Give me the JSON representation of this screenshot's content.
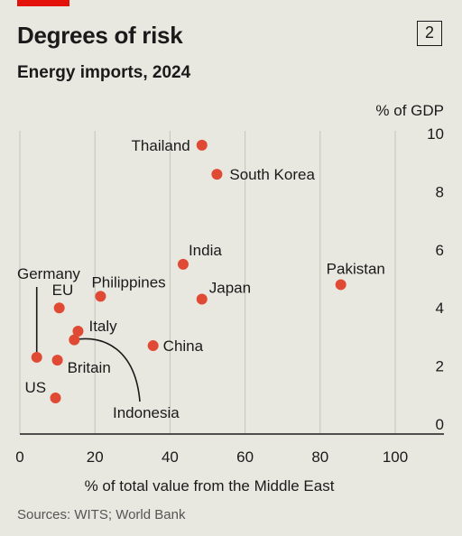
{
  "header": {
    "title": "Degrees of risk",
    "badge": "2",
    "subtitle": "Energy imports, 2024",
    "accent_color": "#e3120b"
  },
  "footer": {
    "source": "Sources: WITS; World Bank"
  },
  "chart_data": {
    "type": "scatter",
    "xlabel": "% of total value from the Middle East",
    "ylabel": "% of GDP",
    "xlim": [
      0,
      110
    ],
    "ylim": [
      0,
      10
    ],
    "xticks": [
      0,
      20,
      40,
      60,
      80,
      100
    ],
    "yticks": [
      0,
      2,
      4,
      6,
      8,
      10
    ],
    "grid": "vertical",
    "point_color": "#e04a35",
    "points": [
      {
        "label": "Thailand",
        "x": 48.5,
        "y": 9.6
      },
      {
        "label": "South Korea",
        "x": 52.5,
        "y": 8.6
      },
      {
        "label": "India",
        "x": 43.5,
        "y": 5.5
      },
      {
        "label": "Pakistan",
        "x": 85.5,
        "y": 4.8
      },
      {
        "label": "Japan",
        "x": 48.5,
        "y": 4.3
      },
      {
        "label": "Philippines",
        "x": 21.5,
        "y": 4.4
      },
      {
        "label": "EU",
        "x": 10.5,
        "y": 4.0
      },
      {
        "label": "Italy",
        "x": 15.5,
        "y": 3.2
      },
      {
        "label": "Indonesia",
        "x": 14.5,
        "y": 2.9
      },
      {
        "label": "China",
        "x": 35.5,
        "y": 2.7
      },
      {
        "label": "Germany",
        "x": 4.5,
        "y": 2.3
      },
      {
        "label": "Britain",
        "x": 10.0,
        "y": 2.2
      },
      {
        "label": "US",
        "x": 9.5,
        "y": 0.9
      }
    ]
  }
}
